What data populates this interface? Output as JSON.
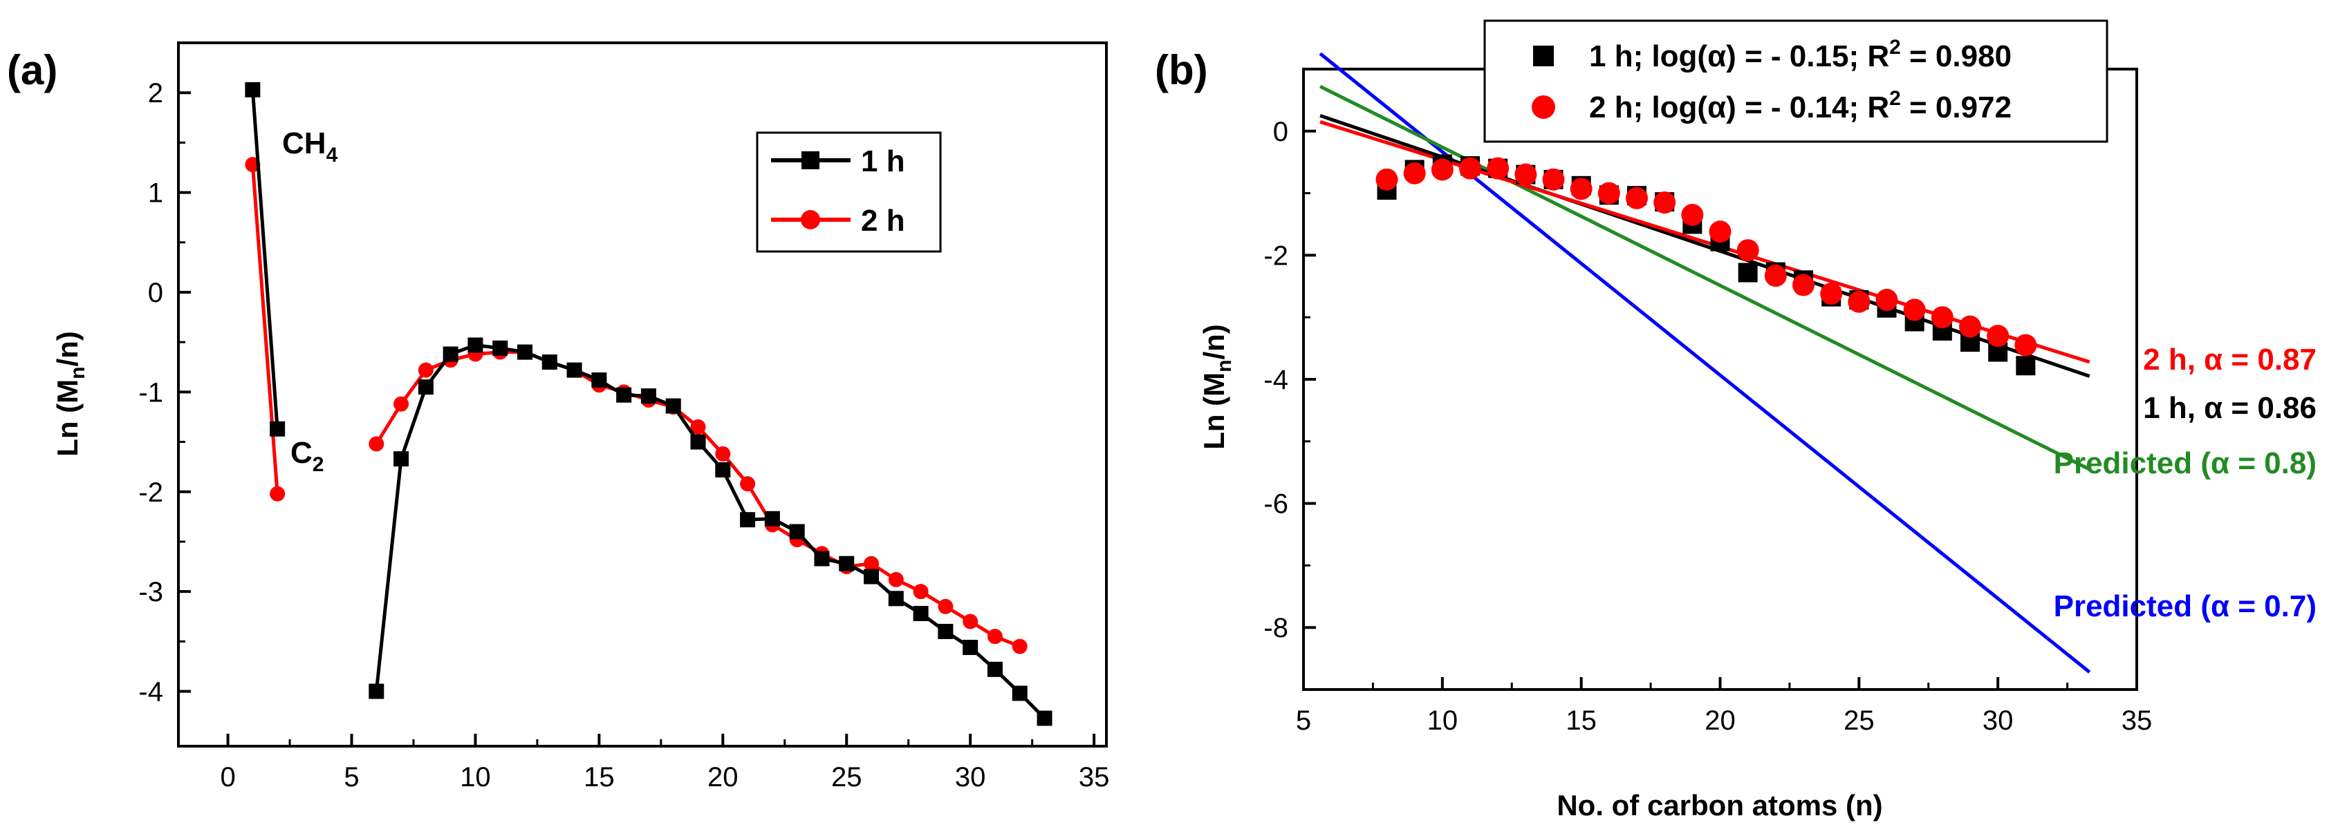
{
  "figure": {
    "panel_a_label": "(a)",
    "panel_b_label": "(b)"
  },
  "colors": {
    "black": "#000000",
    "red": "#ff0000",
    "green": "#228b22",
    "blue": "#0000ff"
  },
  "chart_data": [
    {
      "type": "line",
      "title": "",
      "xlabel": "",
      "ylabel": {
        "main": "Ln (M",
        "sub": "n",
        "tail": "/n)"
      },
      "xlim": [
        -2,
        35.5
      ],
      "ylim": [
        -4.55,
        2.5
      ],
      "xticks": [
        "0",
        "5",
        "10",
        "15",
        "20",
        "25",
        "30",
        "35"
      ],
      "yticks": [
        "-4",
        "-3",
        "-2",
        "-1",
        "0",
        "1",
        "2"
      ],
      "grid": false,
      "legend_position": "top-right",
      "annotations": [
        {
          "main": "CH",
          "sub": "4",
          "x": 2.2,
          "y": 1.55
        },
        {
          "main": "C",
          "sub": "2",
          "x": 2.2,
          "y": -1.75
        }
      ],
      "series": [
        {
          "name": "1 h",
          "color": "#000000",
          "marker": "square",
          "segments": [
            {
              "x": [
                1,
                2
              ],
              "y": [
                2.03,
                -1.37
              ]
            },
            {
              "x": [
                6,
                7,
                8,
                9,
                10,
                11,
                12,
                13,
                14,
                15,
                16,
                17,
                18,
                19,
                20,
                21,
                22,
                23,
                24,
                25,
                26,
                27,
                28,
                29,
                30,
                31,
                32,
                33
              ],
              "y": [
                -4.0,
                -1.67,
                -0.95,
                -0.62,
                -0.53,
                -0.56,
                -0.6,
                -0.7,
                -0.78,
                -0.88,
                -1.03,
                -1.04,
                -1.14,
                -1.5,
                -1.78,
                -2.28,
                -2.27,
                -2.4,
                -2.67,
                -2.72,
                -2.85,
                -3.07,
                -3.22,
                -3.4,
                -3.56,
                -3.78,
                -4.02,
                -4.27
              ]
            }
          ]
        },
        {
          "name": "2 h",
          "color": "#ff0000",
          "marker": "circle",
          "segments": [
            {
              "x": [
                1,
                2
              ],
              "y": [
                1.28,
                -2.02
              ]
            },
            {
              "x": [
                6,
                7,
                8,
                9,
                10,
                11,
                12,
                13,
                14,
                15,
                16,
                17,
                18,
                19,
                20,
                21,
                22,
                23,
                24,
                25,
                26,
                27,
                28,
                29,
                30,
                31,
                32
              ],
              "y": [
                -1.52,
                -1.12,
                -0.78,
                -0.68,
                -0.62,
                -0.6,
                -0.6,
                -0.7,
                -0.78,
                -0.93,
                -1.0,
                -1.08,
                -1.15,
                -1.35,
                -1.62,
                -1.92,
                -2.33,
                -2.48,
                -2.62,
                -2.75,
                -2.72,
                -2.88,
                -3.0,
                -3.15,
                -3.3,
                -3.45,
                -3.55
              ]
            }
          ]
        }
      ]
    },
    {
      "type": "scatter",
      "title": "",
      "xlabel": "No. of carbon atoms (n)",
      "ylabel": {
        "main": "Ln (M",
        "sub": "n",
        "tail": "/n)"
      },
      "xlim": [
        5,
        35
      ],
      "ylim": [
        -9,
        1
      ],
      "xticks": [
        "5",
        "10",
        "15",
        "20",
        "25",
        "30",
        "35"
      ],
      "yticks": [
        "-8",
        "-6",
        "-4",
        "-2",
        "0"
      ],
      "grid": false,
      "legend_position": "top",
      "series": [
        {
          "name": "1 h; log(α) = - 0.15; R² = 0.980",
          "legend": {
            "main": "1 h; log(α) = - 0.15; R",
            "sup": "2",
            "tail": " = 0.980"
          },
          "color": "#000000",
          "marker": "square",
          "x": [
            8,
            9,
            10,
            11,
            12,
            13,
            14,
            15,
            16,
            17,
            18,
            19,
            20,
            21,
            22,
            23,
            24,
            25,
            26,
            27,
            28,
            29,
            30,
            31
          ],
          "y": [
            -0.95,
            -0.62,
            -0.53,
            -0.56,
            -0.6,
            -0.7,
            -0.78,
            -0.88,
            -1.03,
            -1.04,
            -1.14,
            -1.5,
            -1.78,
            -2.28,
            -2.27,
            -2.4,
            -2.67,
            -2.72,
            -2.85,
            -3.07,
            -3.22,
            -3.4,
            -3.56,
            -3.78
          ]
        },
        {
          "name": "2 h; log(α) = - 0.14; R² = 0.972",
          "legend": {
            "main": "2 h; log(α) = - 0.14; R",
            "sup": "2",
            "tail": " = 0.972"
          },
          "color": "#ff0000",
          "marker": "circle",
          "x": [
            8,
            9,
            10,
            11,
            12,
            13,
            14,
            15,
            16,
            17,
            18,
            19,
            20,
            21,
            22,
            23,
            24,
            25,
            26,
            27,
            28,
            29,
            30,
            31
          ],
          "y": [
            -0.78,
            -0.68,
            -0.62,
            -0.6,
            -0.6,
            -0.7,
            -0.78,
            -0.93,
            -1.0,
            -1.08,
            -1.15,
            -1.35,
            -1.62,
            -1.92,
            -2.33,
            -2.48,
            -2.62,
            -2.75,
            -2.72,
            -2.88,
            -3.0,
            -3.15,
            -3.3,
            -3.45
          ]
        }
      ],
      "fit_lines": [
        {
          "label": "1 h, α = 0.86",
          "color": "#000000",
          "x": [
            5.6,
            33.3
          ],
          "y": [
            0.25,
            -3.95
          ]
        },
        {
          "label": "2 h, α = 0.87",
          "color": "#ff0000",
          "x": [
            5.6,
            33.3
          ],
          "y": [
            0.15,
            -3.72
          ]
        },
        {
          "label": "Predicted (α = 0.8)",
          "color": "#228b22",
          "x": [
            5.6,
            33.3
          ],
          "y": [
            0.72,
            -5.45
          ]
        },
        {
          "label": "Predicted (α = 0.7)",
          "color": "#0000ff",
          "x": [
            5.6,
            33.3
          ],
          "y": [
            1.25,
            -8.72
          ]
        }
      ]
    }
  ]
}
